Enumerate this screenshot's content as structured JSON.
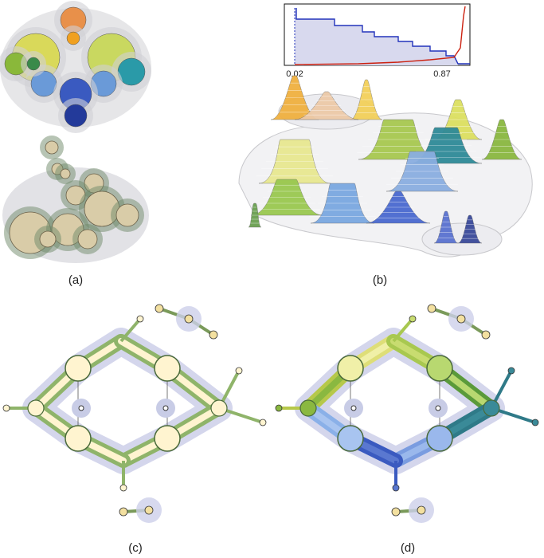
{
  "panels": [
    {
      "label": "(a)"
    },
    {
      "label": "(b)",
      "inset": {
        "tick_labels": [
          "0.02",
          "0.87"
        ]
      }
    },
    {
      "label": "(c)"
    },
    {
      "label": "(d)"
    }
  ]
}
